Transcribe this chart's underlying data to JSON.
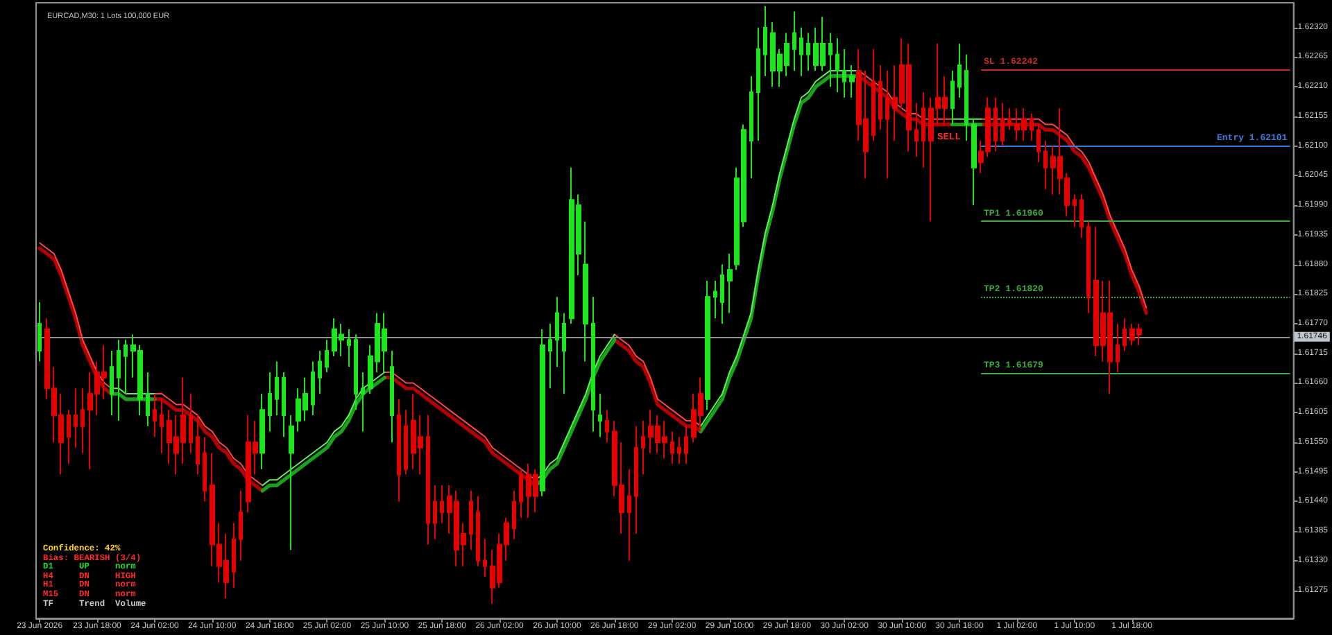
{
  "chart_data": {
    "type": "candlestick",
    "title": "EURCAD,M30: 1 Lots 100,000 EUR",
    "categories": [
      "23 Jun 2026",
      null,
      null,
      null,
      null,
      null,
      null,
      null,
      "23 Jun 18:00",
      null,
      null,
      null,
      null,
      null,
      null,
      null,
      "24 Jun 02:00",
      null,
      null,
      null,
      null,
      null,
      null,
      null,
      "24 Jun 10:00",
      null,
      null,
      null,
      null,
      null,
      null,
      null,
      "24 Jun 18:00",
      null,
      null,
      null,
      null,
      null,
      null,
      null,
      "25 Jun 02:00",
      null,
      null,
      null,
      null,
      null,
      null,
      null,
      "25 Jun 10:00",
      null,
      null,
      null,
      null,
      null,
      null,
      null,
      "25 Jun 18:00",
      null,
      null,
      null,
      null,
      null,
      null,
      null,
      "26 Jun 02:00",
      null,
      null,
      null,
      null,
      null,
      null,
      null,
      "26 Jun 10:00",
      null,
      null,
      null,
      null,
      null,
      null,
      null,
      "26 Jun 18:00",
      null,
      null,
      null,
      null,
      null,
      null,
      null,
      "29 Jun 02:00",
      null,
      null,
      null,
      null,
      null,
      null,
      null,
      "29 Jun 10:00",
      null,
      null,
      null,
      null,
      null,
      null,
      null,
      "29 Jun 18:00",
      null,
      null,
      null,
      null,
      null,
      null,
      null,
      "30 Jun 02:00",
      null,
      null,
      null,
      null,
      null,
      null,
      null,
      "30 Jun 10:00",
      null,
      null,
      null,
      null,
      null,
      null,
      null,
      "30 Jun 18:00",
      null,
      null,
      null,
      null,
      null,
      null,
      null,
      "1 Jul 02:00",
      null,
      null,
      null,
      null,
      null,
      null,
      null,
      "1 Jul 10:00",
      null,
      null,
      null,
      null,
      null,
      null,
      null,
      "1 Jul 18:00",
      null,
      null,
      null,
      null,
      null,
      null,
      null,
      null,
      null,
      null,
      null,
      null,
      null,
      null,
      null,
      null,
      null,
      null,
      null,
      null,
      null,
      null
    ],
    "ohlc": [
      [
        1.6172,
        1.6181,
        1.617,
        1.6177
      ],
      [
        1.6176,
        1.6178,
        1.6163,
        1.6165
      ],
      [
        1.6165,
        1.6169,
        1.6155,
        1.616
      ],
      [
        1.616,
        1.6164,
        1.6149,
        1.6155
      ],
      [
        1.616,
        1.6161,
        1.6151,
        1.6156
      ],
      [
        1.616,
        1.6165,
        1.6154,
        1.6158
      ],
      [
        1.6161,
        1.6165,
        1.6153,
        1.6158
      ],
      [
        1.6164,
        1.6168,
        1.615,
        1.6161
      ],
      [
        1.6168,
        1.617,
        1.616,
        1.6164
      ],
      [
        1.6168,
        1.6173,
        1.6163,
        1.6167
      ],
      [
        1.6164,
        1.6172,
        1.616,
        1.6169
      ],
      [
        1.6167,
        1.6174,
        1.6159,
        1.6172
      ],
      [
        1.6171,
        1.6174,
        1.6164,
        1.6173
      ],
      [
        1.6172,
        1.6175,
        1.6167,
        1.6173
      ],
      [
        1.6163,
        1.6173,
        1.616,
        1.6172
      ],
      [
        1.616,
        1.6168,
        1.6158,
        1.6164
      ],
      [
        1.6161,
        1.6164,
        1.6156,
        1.6159
      ],
      [
        1.616,
        1.6163,
        1.6153,
        1.6158
      ],
      [
        1.6159,
        1.6161,
        1.6151,
        1.6155
      ],
      [
        1.6156,
        1.616,
        1.6149,
        1.6153
      ],
      [
        1.616,
        1.6167,
        1.6151,
        1.6155
      ],
      [
        1.616,
        1.6164,
        1.6153,
        1.6155
      ],
      [
        1.6156,
        1.616,
        1.6149,
        1.6151
      ],
      [
        1.6153,
        1.6156,
        1.6144,
        1.6146
      ],
      [
        1.6147,
        1.6153,
        1.6132,
        1.6136
      ],
      [
        1.6136,
        1.614,
        1.6129,
        1.6132
      ],
      [
        1.6133,
        1.6138,
        1.6126,
        1.6129
      ],
      [
        1.6137,
        1.614,
        1.6128,
        1.6131
      ],
      [
        1.6142,
        1.6146,
        1.6133,
        1.6137
      ],
      [
        1.6155,
        1.616,
        1.6142,
        1.6144
      ],
      [
        1.6155,
        1.6159,
        1.6149,
        1.6153
      ],
      [
        1.6153,
        1.6164,
        1.615,
        1.6161
      ],
      [
        1.616,
        1.6168,
        1.6157,
        1.6164
      ],
      [
        1.6163,
        1.617,
        1.616,
        1.6167
      ],
      [
        1.616,
        1.6168,
        1.6156,
        1.6167
      ],
      [
        1.6153,
        1.616,
        1.6135,
        1.6158
      ],
      [
        1.6159,
        1.6165,
        1.6157,
        1.6163
      ],
      [
        1.6161,
        1.6167,
        1.6159,
        1.6164
      ],
      [
        1.6162,
        1.617,
        1.616,
        1.6168
      ],
      [
        1.6167,
        1.6172,
        1.6164,
        1.617
      ],
      [
        1.6169,
        1.6174,
        1.6168,
        1.6172
      ],
      [
        1.6172,
        1.6178,
        1.6171,
        1.6176
      ],
      [
        1.6174,
        1.6177,
        1.6171,
        1.6175
      ],
      [
        1.6173,
        1.6176,
        1.6169,
        1.6174
      ],
      [
        1.6164,
        1.6175,
        1.6161,
        1.6174
      ],
      [
        1.6164,
        1.6168,
        1.6157,
        1.6165
      ],
      [
        1.6165,
        1.6173,
        1.6164,
        1.6171
      ],
      [
        1.617,
        1.6179,
        1.6168,
        1.6177
      ],
      [
        1.6172,
        1.6179,
        1.6168,
        1.6176
      ],
      [
        1.616,
        1.6172,
        1.6155,
        1.6169
      ],
      [
        1.616,
        1.6163,
        1.6144,
        1.6149
      ],
      [
        1.6158,
        1.6161,
        1.6149,
        1.615
      ],
      [
        1.6159,
        1.6164,
        1.615,
        1.6153
      ],
      [
        1.6156,
        1.616,
        1.6149,
        1.6154
      ],
      [
        1.6156,
        1.616,
        1.6136,
        1.614
      ],
      [
        1.6144,
        1.6147,
        1.6137,
        1.614
      ],
      [
        1.6144,
        1.6147,
        1.614,
        1.6142
      ],
      [
        1.6145,
        1.6147,
        1.6138,
        1.6142
      ],
      [
        1.6144,
        1.6146,
        1.6132,
        1.6135
      ],
      [
        1.6138,
        1.614,
        1.6132,
        1.6136
      ],
      [
        1.6144,
        1.6146,
        1.6135,
        1.6138
      ],
      [
        1.6142,
        1.6145,
        1.6132,
        1.6133
      ],
      [
        1.6133,
        1.6137,
        1.613,
        1.6132
      ],
      [
        1.6132,
        1.6135,
        1.6125,
        1.6128
      ],
      [
        1.6136,
        1.6138,
        1.6128,
        1.6129
      ],
      [
        1.614,
        1.6141,
        1.6133,
        1.6136
      ],
      [
        1.6144,
        1.6146,
        1.6137,
        1.6139
      ],
      [
        1.6149,
        1.615,
        1.6141,
        1.6144
      ],
      [
        1.6149,
        1.6151,
        1.6141,
        1.6145
      ],
      [
        1.6149,
        1.615,
        1.6142,
        1.6145
      ],
      [
        1.6146,
        1.6176,
        1.6145,
        1.6173
      ],
      [
        1.6172,
        1.6177,
        1.6165,
        1.6174
      ],
      [
        1.6174,
        1.6182,
        1.6169,
        1.6179
      ],
      [
        1.6172,
        1.6179,
        1.6164,
        1.6177
      ],
      [
        1.6178,
        1.6206,
        1.6177,
        1.62
      ],
      [
        1.619,
        1.6201,
        1.6186,
        1.6199
      ],
      [
        1.6177,
        1.6196,
        1.617,
        1.6188
      ],
      [
        1.6161,
        1.6182,
        1.6157,
        1.6177
      ],
      [
        1.6159,
        1.6164,
        1.6156,
        1.616
      ],
      [
        1.6159,
        1.6161,
        1.6155,
        1.6157
      ],
      [
        1.6157,
        1.6159,
        1.6145,
        1.6147
      ],
      [
        1.6147,
        1.6155,
        1.6138,
        1.6142
      ],
      [
        1.6145,
        1.615,
        1.6133,
        1.6142
      ],
      [
        1.6154,
        1.6158,
        1.6138,
        1.6145
      ],
      [
        1.6156,
        1.6159,
        1.6149,
        1.6154
      ],
      [
        1.6158,
        1.6161,
        1.6153,
        1.6156
      ],
      [
        1.6158,
        1.616,
        1.6153,
        1.6155
      ],
      [
        1.6156,
        1.6159,
        1.6152,
        1.6155
      ],
      [
        1.6155,
        1.6157,
        1.6151,
        1.6153
      ],
      [
        1.6154,
        1.6156,
        1.6151,
        1.6153
      ],
      [
        1.6156,
        1.6158,
        1.6151,
        1.6153
      ],
      [
        1.6161,
        1.6164,
        1.6155,
        1.6156
      ],
      [
        1.6164,
        1.6167,
        1.6157,
        1.616
      ],
      [
        1.6163,
        1.6185,
        1.6161,
        1.6182
      ],
      [
        1.6182,
        1.6185,
        1.6178,
        1.6183
      ],
      [
        1.6181,
        1.6188,
        1.6177,
        1.6186
      ],
      [
        1.6185,
        1.619,
        1.6179,
        1.6187
      ],
      [
        1.6188,
        1.6206,
        1.6187,
        1.6204
      ],
      [
        1.6196,
        1.6214,
        1.6195,
        1.6213
      ],
      [
        1.6211,
        1.6223,
        1.6204,
        1.622
      ],
      [
        1.622,
        1.6232,
        1.6211,
        1.6228
      ],
      [
        1.6227,
        1.6236,
        1.6223,
        1.6232
      ],
      [
        1.6224,
        1.6233,
        1.6221,
        1.6231
      ],
      [
        1.6224,
        1.6228,
        1.6221,
        1.6227
      ],
      [
        1.6225,
        1.6231,
        1.6223,
        1.6229
      ],
      [
        1.6228,
        1.6235,
        1.6224,
        1.6231
      ],
      [
        1.6227,
        1.6232,
        1.6223,
        1.623
      ],
      [
        1.6227,
        1.6231,
        1.6224,
        1.6229
      ],
      [
        1.6225,
        1.6232,
        1.6224,
        1.6229
      ],
      [
        1.6225,
        1.6234,
        1.6224,
        1.6229
      ],
      [
        1.6227,
        1.6231,
        1.6221,
        1.6229
      ],
      [
        1.6224,
        1.623,
        1.622,
        1.6227
      ],
      [
        1.6222,
        1.6228,
        1.6219,
        1.6224
      ],
      [
        1.6222,
        1.6225,
        1.6219,
        1.6223
      ],
      [
        1.6224,
        1.6228,
        1.6211,
        1.6214
      ],
      [
        1.6215,
        1.6224,
        1.6204,
        1.6209
      ],
      [
        1.6222,
        1.6228,
        1.6211,
        1.6212
      ],
      [
        1.6222,
        1.6225,
        1.6213,
        1.6215
      ],
      [
        1.6219,
        1.6224,
        1.6204,
        1.6215
      ],
      [
        1.6219,
        1.6225,
        1.6211,
        1.6217
      ],
      [
        1.6225,
        1.623,
        1.6217,
        1.6218
      ],
      [
        1.6225,
        1.6229,
        1.6209,
        1.6213
      ],
      [
        1.6213,
        1.6218,
        1.6208,
        1.6211
      ],
      [
        1.6217,
        1.622,
        1.6206,
        1.6211
      ],
      [
        1.6217,
        1.6219,
        1.6196,
        1.6211
      ],
      [
        1.6219,
        1.6229,
        1.6214,
        1.6217
      ],
      [
        1.6219,
        1.6223,
        1.6214,
        1.6217
      ],
      [
        1.6217,
        1.6224,
        1.6214,
        1.6222
      ],
      [
        1.6221,
        1.6229,
        1.6219,
        1.6225
      ],
      [
        1.6214,
        1.6227,
        1.6211,
        1.6224
      ],
      [
        1.6206,
        1.6215,
        1.6199,
        1.6214
      ],
      [
        1.6209,
        1.6211,
        1.6205,
        1.6207
      ],
      [
        1.6217,
        1.6219,
        1.6208,
        1.6209
      ],
      [
        1.6217,
        1.6219,
        1.6209,
        1.6211
      ],
      [
        1.6215,
        1.6218,
        1.621,
        1.6211
      ],
      [
        1.6215,
        1.6217,
        1.6213,
        1.6214
      ],
      [
        1.6214,
        1.6217,
        1.6211,
        1.6213
      ],
      [
        1.6215,
        1.6217,
        1.6211,
        1.6213
      ],
      [
        1.6215,
        1.6216,
        1.6211,
        1.6213
      ],
      [
        1.6213,
        1.6214,
        1.6207,
        1.6209
      ],
      [
        1.6209,
        1.6211,
        1.6202,
        1.6206
      ],
      [
        1.6208,
        1.621,
        1.6201,
        1.6206
      ],
      [
        1.6208,
        1.6217,
        1.6201,
        1.6204
      ],
      [
        1.6204,
        1.6205,
        1.6197,
        1.6199
      ],
      [
        1.62,
        1.6201,
        1.6195,
        1.6199
      ],
      [
        1.62,
        1.6201,
        1.6193,
        1.6195
      ],
      [
        1.6195,
        1.6196,
        1.6179,
        1.6182
      ],
      [
        1.6185,
        1.6195,
        1.6171,
        1.6173
      ],
      [
        1.6179,
        1.6185,
        1.617,
        1.6173
      ],
      [
        1.6179,
        1.6185,
        1.6164,
        1.617
      ],
      [
        1.6173,
        1.6177,
        1.6168,
        1.617
      ],
      [
        1.6176,
        1.6178,
        1.6172,
        1.6173
      ],
      [
        1.6176,
        1.6177,
        1.6173,
        1.6174
      ],
      [
        1.6176,
        1.6177,
        1.6173,
        1.6175
      ],
      null,
      null,
      null,
      null,
      null,
      null,
      null,
      null,
      null,
      null,
      null,
      null,
      null,
      null,
      null,
      null,
      null,
      null,
      null,
      null,
      null
    ],
    "colors": [
      "#1ee61e",
      "#e60000",
      "#e60000",
      "#e60000",
      "#e60000",
      "#e60000",
      "#e60000",
      "#e60000",
      "#e60000",
      "#e60000",
      "#1ee61e",
      "#1ee61e",
      "#1ee61e",
      "#1ee61e",
      "#1ee61e",
      "#1ee61e",
      "#e60000",
      "#e60000",
      "#e60000",
      "#e60000",
      "#e60000",
      "#e60000",
      "#e60000",
      "#e60000",
      "#e60000",
      "#e60000",
      "#e60000",
      "#e60000",
      "#e60000",
      "#e60000",
      "#e60000",
      "#1ee61e",
      "#1ee61e",
      "#1ee61e",
      "#1ee61e",
      "#1ee61e",
      "#1ee61e",
      "#1ee61e",
      "#1ee61e",
      "#1ee61e",
      "#1ee61e",
      "#1ee61e",
      "#1ee61e",
      "#1ee61e",
      "#1ee61e",
      "#1ee61e",
      "#1ee61e",
      "#1ee61e",
      "#1ee61e",
      "#1ee61e",
      "#e60000",
      "#e60000",
      "#e60000",
      "#e60000",
      "#e60000",
      "#e60000",
      "#e60000",
      "#e60000",
      "#e60000",
      "#e60000",
      "#e60000",
      "#e60000",
      "#e60000",
      "#e60000",
      "#e60000",
      "#e60000",
      "#e60000",
      "#e60000",
      "#e60000",
      "#e60000",
      "#1ee61e",
      "#1ee61e",
      "#1ee61e",
      "#1ee61e",
      "#1ee61e",
      "#1ee61e",
      "#1ee61e",
      "#1ee61e",
      "#1ee61e",
      "#e60000",
      "#e60000",
      "#e60000",
      "#e60000",
      "#e60000",
      "#e60000",
      "#e60000",
      "#e60000",
      "#e60000",
      "#e60000",
      "#e60000",
      "#e60000",
      "#e60000",
      "#e60000",
      "#1ee61e",
      "#1ee61e",
      "#1ee61e",
      "#1ee61e",
      "#1ee61e",
      "#1ee61e",
      "#1ee61e",
      "#1ee61e",
      "#1ee61e",
      "#1ee61e",
      "#1ee61e",
      "#1ee61e",
      "#1ee61e",
      "#1ee61e",
      "#1ee61e",
      "#1ee61e",
      "#1ee61e",
      "#1ee61e",
      "#1ee61e",
      "#1ee61e",
      "#1ee61e",
      "#e60000",
      "#e60000",
      "#e60000",
      "#e60000",
      "#e60000",
      "#e60000",
      "#e60000",
      "#e60000",
      "#e60000",
      "#e60000",
      "#e60000",
      "#e60000",
      "#e60000",
      "#1ee61e",
      "#1ee61e",
      "#1ee61e",
      "#1ee61e",
      "#e60000",
      "#e60000",
      "#e60000",
      "#e60000",
      "#e60000",
      "#e60000",
      "#e60000",
      "#e60000",
      "#e60000",
      "#e60000",
      "#e60000",
      "#e60000",
      "#e60000",
      "#e60000",
      "#e60000",
      "#e60000",
      "#e60000",
      "#e60000",
      "#e60000",
      "#e60000",
      "#e60000",
      "#e60000",
      "#e60000",
      null,
      null,
      null,
      null,
      null,
      null,
      null,
      null,
      null,
      null,
      null,
      null,
      null,
      null,
      null,
      null,
      null,
      null,
      null,
      null,
      null
    ],
    "series": [
      {
        "type": "line",
        "color": "#b40000",
        "values": [
          1.6191,
          1.619,
          1.6189,
          1.6186,
          1.6182,
          1.6178,
          1.6173,
          1.617,
          1.6167,
          1.6165,
          1.6164,
          null,
          null,
          null,
          null,
          null,
          1.6163,
          1.6163,
          1.6162,
          1.6161,
          1.6161,
          1.616,
          1.6159,
          1.6157,
          1.6156,
          1.6154,
          1.6153,
          1.6151,
          1.615,
          1.6148,
          1.6147,
          1.6146,
          null,
          null,
          null,
          null,
          null,
          null,
          null,
          null,
          null,
          null,
          null,
          null,
          null,
          null,
          null,
          null,
          1.6167,
          1.6167,
          1.6166,
          1.6165,
          1.6165,
          1.6164,
          1.6163,
          1.6162,
          1.6161,
          1.616,
          1.6159,
          1.6158,
          1.6157,
          1.6156,
          1.6155,
          1.6153,
          1.6152,
          1.6151,
          1.615,
          1.6149,
          1.6148,
          1.6147,
          null,
          null,
          null,
          null,
          null,
          null,
          null,
          null,
          null,
          null,
          1.6174,
          1.6173,
          1.6172,
          1.617,
          1.6169,
          1.6166,
          1.6162,
          1.6161,
          1.616,
          1.6159,
          1.6158,
          1.6158,
          1.6157,
          null,
          null,
          null,
          null,
          null,
          null,
          null,
          null,
          null,
          null,
          null,
          null,
          null,
          null,
          null,
          null,
          null,
          null,
          null,
          null,
          null,
          1.6223,
          1.6222,
          1.6221,
          1.622,
          1.6219,
          1.6217,
          1.6216,
          1.6215,
          1.6215,
          1.6214,
          1.6214,
          1.6214,
          1.6214,
          1.6214,
          null,
          null,
          null,
          1.6214,
          1.6214,
          1.6214,
          1.6214,
          1.6214,
          1.6214,
          1.6214,
          1.6214,
          1.6214,
          1.6213,
          1.6213,
          1.6212,
          1.6211,
          1.6209,
          1.6208,
          1.6206,
          1.6203,
          1.62,
          1.6196,
          1.6193,
          1.619,
          1.6186,
          1.6183,
          1.6179,
          null,
          null,
          null,
          null,
          null,
          null,
          null,
          null,
          null,
          null,
          null,
          null,
          null,
          null,
          null,
          null,
          null,
          null,
          null,
          null
        ]
      },
      {
        "type": "line",
        "color": "#1aa31a",
        "values": [
          null,
          null,
          null,
          null,
          null,
          null,
          null,
          null,
          null,
          null,
          1.6164,
          1.6164,
          1.6163,
          1.6163,
          1.6163,
          1.6163,
          1.6163,
          null,
          null,
          null,
          null,
          null,
          null,
          null,
          null,
          null,
          null,
          null,
          null,
          null,
          null,
          1.6146,
          1.6147,
          1.6147,
          1.6148,
          1.6149,
          1.615,
          1.6151,
          1.6152,
          1.6153,
          1.6154,
          1.6156,
          1.6157,
          1.6159,
          1.6162,
          1.6164,
          1.6165,
          1.6166,
          1.6167,
          null,
          null,
          null,
          null,
          null,
          null,
          null,
          null,
          null,
          null,
          null,
          null,
          null,
          null,
          null,
          null,
          null,
          null,
          null,
          null,
          1.6147,
          1.6148,
          1.615,
          1.6151,
          1.6154,
          1.6157,
          1.616,
          1.6163,
          1.6167,
          1.617,
          1.6172,
          1.6174,
          null,
          null,
          null,
          null,
          null,
          null,
          null,
          null,
          null,
          null,
          null,
          1.6157,
          1.6159,
          1.6161,
          1.6163,
          1.6167,
          1.617,
          1.6174,
          1.6178,
          1.6186,
          1.6193,
          1.6198,
          1.6204,
          1.6209,
          1.6214,
          1.6218,
          1.6219,
          1.6221,
          1.6222,
          1.6223,
          1.6223,
          1.6223,
          1.6223,
          1.6223,
          null,
          null,
          null,
          null,
          null,
          null,
          null,
          null,
          null,
          null,
          null,
          null,
          1.6214,
          1.6214,
          1.6214,
          1.6214,
          1.6214,
          null,
          null,
          null,
          null,
          null,
          null,
          null,
          null,
          null,
          null,
          null,
          null,
          null,
          null,
          null,
          null,
          null,
          null,
          null,
          null,
          null,
          null,
          null,
          null,
          null,
          null,
          null,
          null,
          null,
          null,
          null,
          null,
          null,
          null,
          null,
          null,
          null,
          null,
          null,
          null,
          null,
          null,
          null
        ]
      },
      {
        "type": "line",
        "color": "#ff4646",
        "values": [
          1.6192,
          1.6191,
          1.619,
          1.6187,
          1.6183,
          1.6179,
          1.6174,
          1.6171,
          1.6168,
          1.6166,
          1.6165,
          null,
          null,
          null,
          null,
          null,
          1.6164,
          1.6164,
          1.6163,
          1.6162,
          1.6162,
          1.6161,
          1.616,
          1.6158,
          1.6157,
          1.6155,
          1.6154,
          1.6152,
          1.6151,
          1.6149,
          1.6148,
          1.6147,
          null,
          null,
          null,
          null,
          null,
          null,
          null,
          null,
          null,
          null,
          null,
          null,
          null,
          null,
          null,
          null,
          1.6168,
          1.6168,
          1.6167,
          1.6166,
          1.6166,
          1.6165,
          1.6164,
          1.6163,
          1.6162,
          1.6161,
          1.616,
          1.6159,
          1.6158,
          1.6157,
          1.6156,
          1.6154,
          1.6153,
          1.6152,
          1.6151,
          1.615,
          1.6149,
          1.6148,
          null,
          null,
          null,
          null,
          null,
          null,
          null,
          null,
          null,
          null,
          1.6175,
          1.6174,
          1.6173,
          1.6171,
          1.617,
          1.6167,
          1.6163,
          1.6162,
          1.6161,
          1.616,
          1.6159,
          1.6159,
          1.6158,
          null,
          null,
          null,
          null,
          null,
          null,
          null,
          null,
          null,
          null,
          null,
          null,
          null,
          null,
          null,
          null,
          null,
          null,
          null,
          null,
          null,
          1.6224,
          1.6223,
          1.6222,
          1.6221,
          1.622,
          1.6218,
          1.6217,
          1.6216,
          1.6216,
          1.6215,
          1.6215,
          1.6215,
          1.6215,
          1.6215,
          null,
          null,
          null,
          1.6215,
          1.6215,
          1.6215,
          1.6215,
          1.6215,
          1.6215,
          1.6215,
          1.6215,
          1.6215,
          1.6214,
          1.6214,
          1.6213,
          1.6212,
          1.621,
          1.6209,
          1.6207,
          1.6204,
          1.6201,
          1.6197,
          1.6194,
          1.6191,
          1.6187,
          1.6184,
          1.618,
          null,
          null,
          null,
          null,
          null,
          null,
          null,
          null,
          null,
          null,
          null,
          null,
          null,
          null,
          null,
          null,
          null,
          null,
          null,
          null
        ]
      },
      {
        "type": "line",
        "color": "#5cf05c",
        "values": [
          null,
          null,
          null,
          null,
          null,
          null,
          null,
          null,
          null,
          null,
          1.6165,
          1.6165,
          1.6164,
          1.6164,
          1.6164,
          1.6164,
          1.6164,
          null,
          null,
          null,
          null,
          null,
          null,
          null,
          null,
          null,
          null,
          null,
          null,
          null,
          null,
          1.6147,
          1.6148,
          1.6148,
          1.6149,
          1.615,
          1.6151,
          1.6152,
          1.6153,
          1.6154,
          1.6155,
          1.6157,
          1.6158,
          1.616,
          1.6163,
          1.6165,
          1.6166,
          1.6167,
          1.6168,
          null,
          null,
          null,
          null,
          null,
          null,
          null,
          null,
          null,
          null,
          null,
          null,
          null,
          null,
          null,
          null,
          null,
          null,
          null,
          null,
          1.6148,
          1.6149,
          1.6151,
          1.6152,
          1.6155,
          1.6158,
          1.6161,
          1.6164,
          1.6168,
          1.6171,
          1.6173,
          1.6175,
          null,
          null,
          null,
          null,
          null,
          null,
          null,
          null,
          null,
          null,
          null,
          1.6158,
          1.616,
          1.6162,
          1.6164,
          1.6168,
          1.6171,
          1.6175,
          1.6179,
          1.6187,
          1.6194,
          1.6199,
          1.6205,
          1.621,
          1.6215,
          1.6219,
          1.622,
          1.6222,
          1.6223,
          1.6224,
          1.6224,
          1.6224,
          1.6224,
          1.6224,
          null,
          null,
          null,
          null,
          null,
          null,
          null,
          null,
          null,
          null,
          null,
          null,
          1.6215,
          1.6215,
          1.6215,
          1.6215,
          1.6215,
          null,
          null,
          null,
          null,
          null,
          null,
          null,
          null,
          null,
          null,
          null,
          null,
          null,
          null,
          null,
          null,
          null,
          null,
          null,
          null,
          null,
          null,
          null,
          null,
          null,
          null,
          null,
          null,
          null,
          null,
          null,
          null,
          null,
          null,
          null,
          null,
          null,
          null,
          null,
          null,
          null,
          null,
          null
        ]
      }
    ],
    "ylim": [
      1.61223,
      1.62366
    ],
    "yticks": [
      {
        "value": 1.6232,
        "label": "1.62320"
      },
      1.62265,
      {
        "value": 1.6221,
        "label": "1.62210"
      },
      1.62155,
      {
        "value": 1.621,
        "label": "1.62100"
      },
      1.62045,
      {
        "value": 1.6199,
        "label": "1.61990"
      },
      1.61935,
      {
        "value": 1.6188,
        "label": "1.61880"
      },
      1.61825,
      {
        "value": 1.6177,
        "label": "1.61770"
      },
      1.61715,
      {
        "value": 1.6166,
        "label": "1.61660"
      },
      1.61605,
      {
        "value": 1.6155,
        "label": "1.61550"
      },
      1.61495,
      {
        "value": 1.6144,
        "label": "1.61440"
      },
      1.61385,
      {
        "value": 1.6133,
        "label": "1.61330"
      },
      1.61275
    ],
    "ref_lines": [
      {
        "axis": "y",
        "value": 1.62242,
        "label": "SL 1.62242",
        "color": "#c82828"
      },
      {
        "axis": "y",
        "value": 1.62101,
        "label": "Entry 1.62101",
        "color": "#3c7ee0"
      },
      {
        "axis": "y",
        "value": 1.6196,
        "label": "TP1 1.61960",
        "color": "#3caa3c"
      },
      {
        "axis": "y",
        "value": 1.6182,
        "label": "TP2 1.61820",
        "color": "#3caa3c",
        "line_style": "dotted"
      },
      {
        "axis": "y",
        "value": 1.61679,
        "label": "TP3 1.61679",
        "color": "#3caa3c"
      },
      {
        "axis": "y",
        "value": 1.61746,
        "label": "1.61746"
      }
    ],
    "annotations": [
      "SELL",
      "Confidence: 42%",
      "Bias: BEARISH (3/4)",
      "D1     UP     norm",
      "H4     DN     HIGH",
      "H1     DN     norm",
      "M15    DN     norm",
      "TF     Trend  Volume"
    ]
  }
}
